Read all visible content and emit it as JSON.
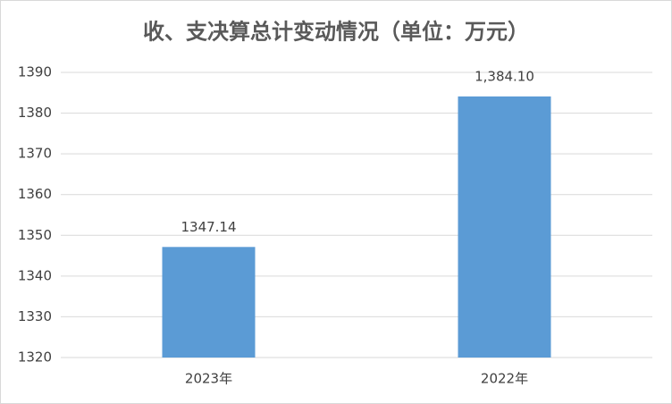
{
  "chart_data": {
    "type": "bar",
    "title": "收、支决算总计变动情况（单位：万元）",
    "categories": [
      "2023年",
      "2022年"
    ],
    "values": [
      1347.14,
      1384.1
    ],
    "value_labels": [
      "1347.14",
      "1,384.10"
    ],
    "color": "#5b9bd5",
    "ylim": [
      1320,
      1390
    ],
    "yticks": [
      1320,
      1330,
      1340,
      1350,
      1360,
      1370,
      1380,
      1390
    ],
    "grid": true
  }
}
